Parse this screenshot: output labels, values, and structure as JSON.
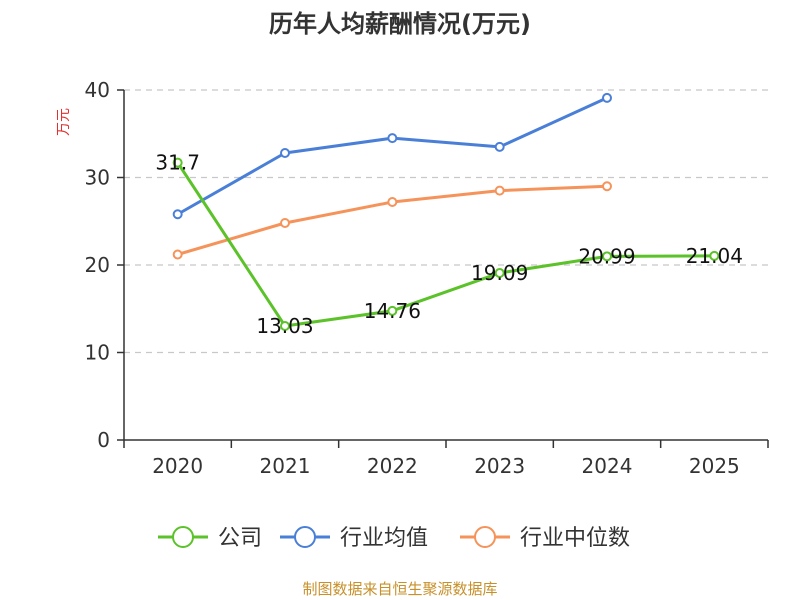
{
  "chart_data": {
    "type": "line",
    "title": "历年人均薪酬情况(万元)",
    "ylabel": "万元",
    "xlabel": "",
    "categories": [
      "2020",
      "2021",
      "2022",
      "2023",
      "2024",
      "2025"
    ],
    "ylim": [
      0,
      40
    ],
    "yticks": [
      0,
      10,
      20,
      30,
      40
    ],
    "grid": true,
    "legend_position": "bottom",
    "series": [
      {
        "name": "公司",
        "color": "#5cc22a",
        "values": [
          31.7,
          13.03,
          14.76,
          19.09,
          20.99,
          21.04
        ],
        "labels": [
          "31.7",
          "13.03",
          "14.76",
          "19.09",
          "20.99",
          "21.04"
        ]
      },
      {
        "name": "行业均值",
        "color": "#4a7fd8",
        "values": [
          25.8,
          32.8,
          34.5,
          33.5,
          39.1,
          null
        ]
      },
      {
        "name": "行业中位数",
        "color": "#f5935a",
        "values": [
          21.2,
          24.8,
          27.2,
          28.5,
          29.0,
          null
        ]
      }
    ]
  },
  "source": "制图数据来自恒生聚源数据库"
}
